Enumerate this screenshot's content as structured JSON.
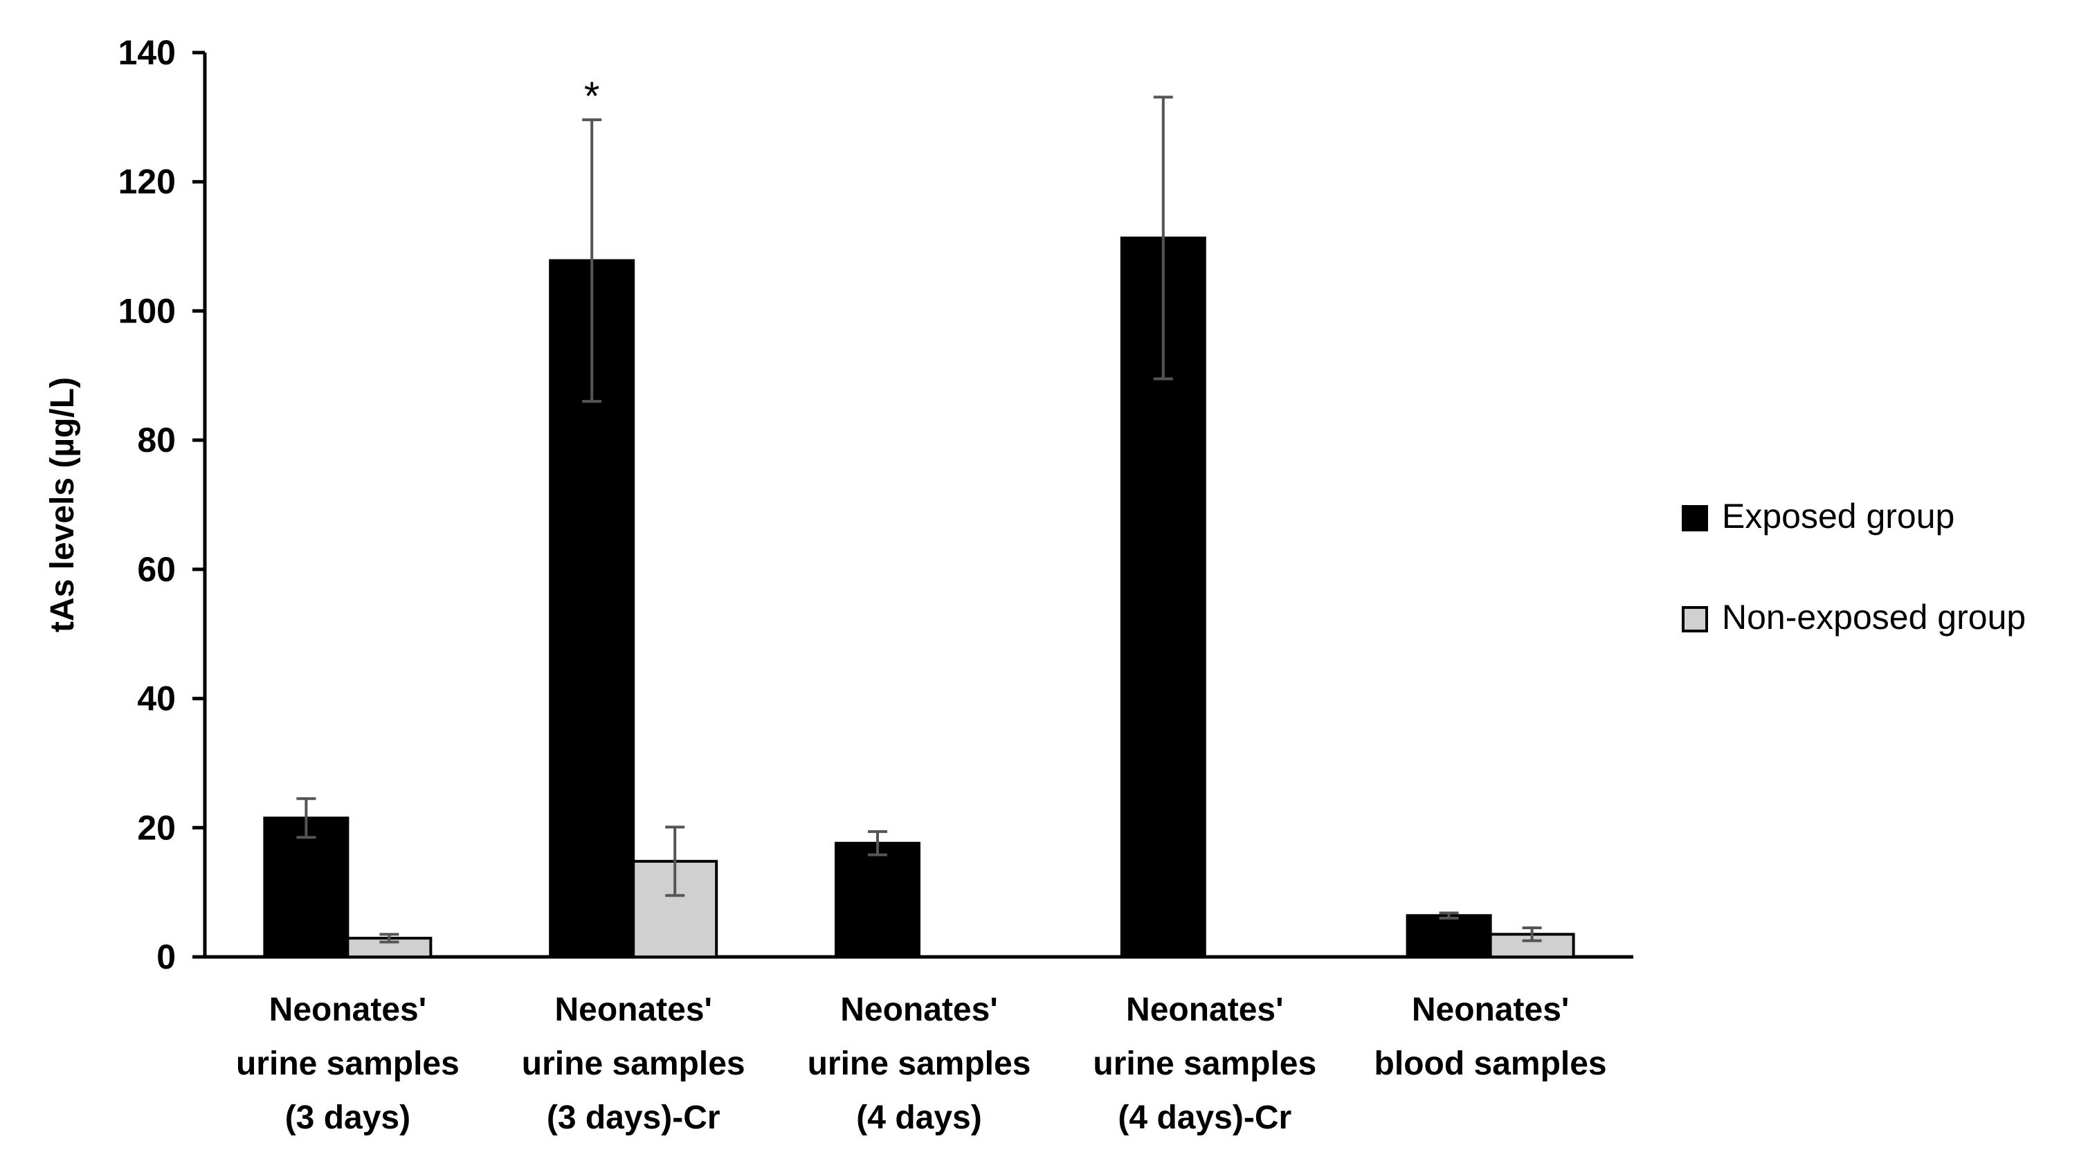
{
  "chart_data": {
    "type": "bar",
    "title": "",
    "xlabel": "",
    "ylabel": "tAs levels (µg/L)",
    "ylim": [
      0,
      140
    ],
    "yticks": [
      0,
      20,
      40,
      60,
      80,
      100,
      120,
      140
    ],
    "grid": false,
    "legend_position": "right",
    "categories": [
      [
        "Neonates'",
        "urine samples",
        "(3 days)"
      ],
      [
        "Neonates'",
        "urine samples",
        "(3 days)-Cr"
      ],
      [
        "Neonates'",
        "urine samples",
        "(4 days)"
      ],
      [
        "Neonates'",
        "urine samples",
        "(4 days)-Cr"
      ],
      [
        "Neonates'",
        "blood samples"
      ]
    ],
    "series": [
      {
        "name": "Exposed group",
        "color": "#000000",
        "values": [
          21.5,
          107.8,
          17.6,
          111.3,
          6.4
        ],
        "errors": [
          3.0,
          21.8,
          1.8,
          21.8,
          0.4
        ]
      },
      {
        "name": "Non-exposed group",
        "color": "#d0d0d0",
        "values": [
          2.9,
          14.8,
          null,
          null,
          3.5
        ],
        "errors": [
          0.6,
          5.3,
          null,
          null,
          1.0
        ]
      }
    ],
    "annotations": [
      {
        "category_index": 1,
        "series_index": 0,
        "text": "*"
      }
    ]
  }
}
